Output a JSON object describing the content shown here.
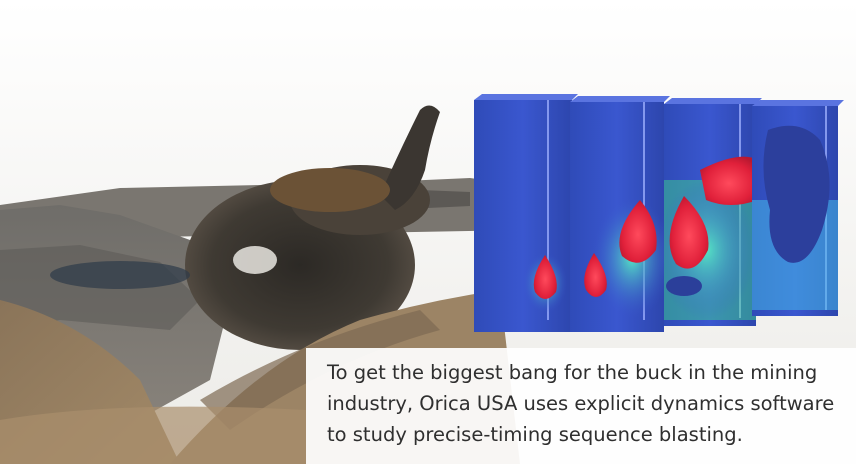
{
  "caption": "To get the biggest bang for the buck in the mining industry, Orica USA uses explicit dynamics software to study precise-timing sequence blasting.",
  "colors": {
    "sky": "#f3f3f1",
    "blast_dust": "#3a3631",
    "simulation_blue": "#3651c8",
    "simulation_red": "#e0203a",
    "simulation_green": "#3fe08a",
    "caption_text": "#2f2f2f"
  }
}
